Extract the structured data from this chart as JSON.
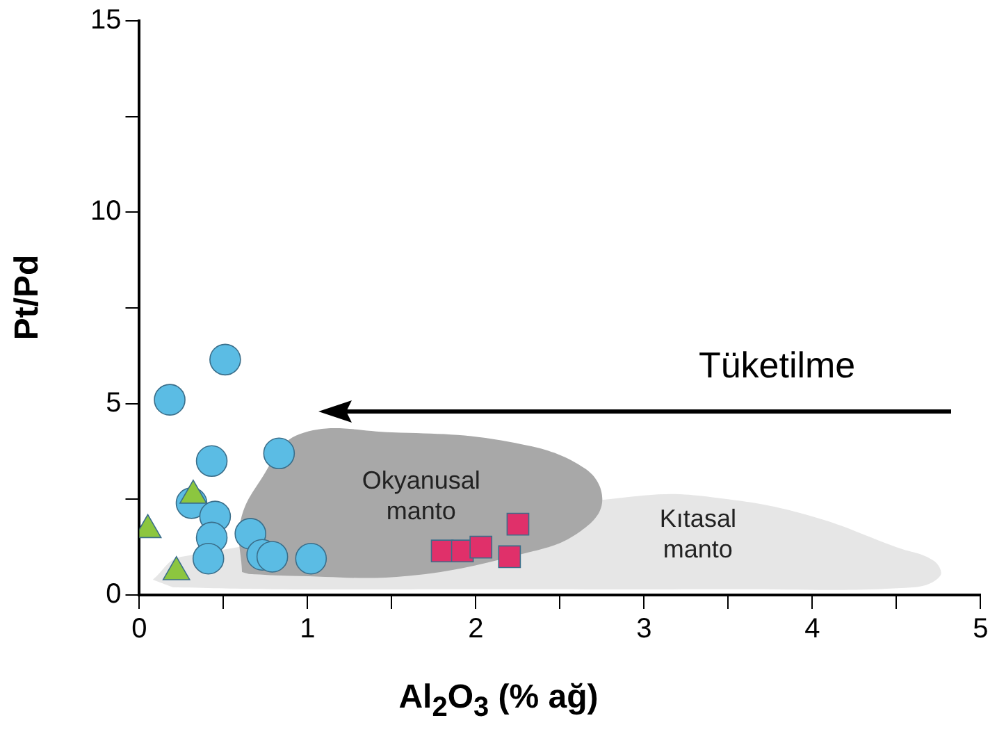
{
  "chart_data": {
    "type": "scatter",
    "xlabel": "Al$_{2}$O$_{3}$ (% ağ)",
    "ylabel": "Pt/Pd",
    "xlim": [
      0,
      5
    ],
    "ylim": [
      0,
      15
    ],
    "xticks": [
      0,
      {
        "value": 0.5,
        "label": null
      },
      1,
      {
        "value": 1.5,
        "label": null
      },
      2,
      {
        "value": 2.5,
        "label": null
      },
      3,
      {
        "value": 3.5,
        "label": null
      },
      4,
      {
        "value": 4.5,
        "label": null
      },
      5
    ],
    "yticks": [
      0,
      {
        "value": 2.5,
        "label": null
      },
      5,
      {
        "value": 7.5,
        "label": null
      },
      10,
      {
        "value": 12.5,
        "label": null
      },
      15
    ],
    "grid": false,
    "legend": false,
    "annotations": [
      "Tüketilme"
    ],
    "series": [
      {
        "type": "area",
        "name": "Kıtasal manto",
        "color": "#e6e6e6",
        "x": [
          0.08,
          0.25,
          0.6,
          1.1,
          1.8,
          2.6,
          3.0,
          3.5,
          4.0,
          4.5,
          4.72,
          4.76,
          4.6,
          3.5,
          2.0,
          0.8,
          0.2
        ],
        "values": [
          0.4,
          1.0,
          null,
          null,
          null,
          null,
          2.6,
          2.5,
          2.05,
          1.25,
          0.9,
          0.5,
          0.2,
          0.15,
          0.15,
          0.15,
          0.2
        ]
      },
      {
        "type": "area",
        "name": "Okyanusal manto",
        "color": "#a8a8a8",
        "x": [
          0.61,
          0.6,
          0.72,
          0.95,
          1.5,
          2.2,
          2.65,
          2.75,
          2.6,
          2.3,
          1.6,
          0.9,
          0.65
        ],
        "values": [
          0.6,
          1.9,
          3.0,
          4.2,
          4.25,
          4.0,
          3.3,
          2.4,
          1.6,
          1.1,
          0.5,
          0.5,
          0.55
        ]
      },
      {
        "color": "#5bbce4",
        "marker": "circle",
        "x": [
          0.18,
          0.51,
          0.43,
          0.83,
          0.31,
          0.45,
          0.43,
          0.41,
          0.66,
          0.73,
          0.79,
          1.02
        ],
        "values": [
          5.1,
          6.15,
          3.5,
          3.7,
          2.4,
          2.05,
          1.5,
          0.95,
          1.6,
          1.05,
          1.0,
          0.95
        ]
      },
      {
        "color": "#8cc63f",
        "marker": "triangle",
        "x": [
          0.05,
          0.32,
          0.22
        ],
        "values": [
          1.7,
          2.6,
          0.6
        ]
      },
      {
        "color": "#e0306a",
        "marker": "square",
        "x": [
          1.8,
          1.92,
          2.03,
          2.2,
          2.25
        ],
        "values": [
          1.15,
          1.15,
          1.25,
          1.0,
          1.85
        ]
      }
    ]
  }
}
